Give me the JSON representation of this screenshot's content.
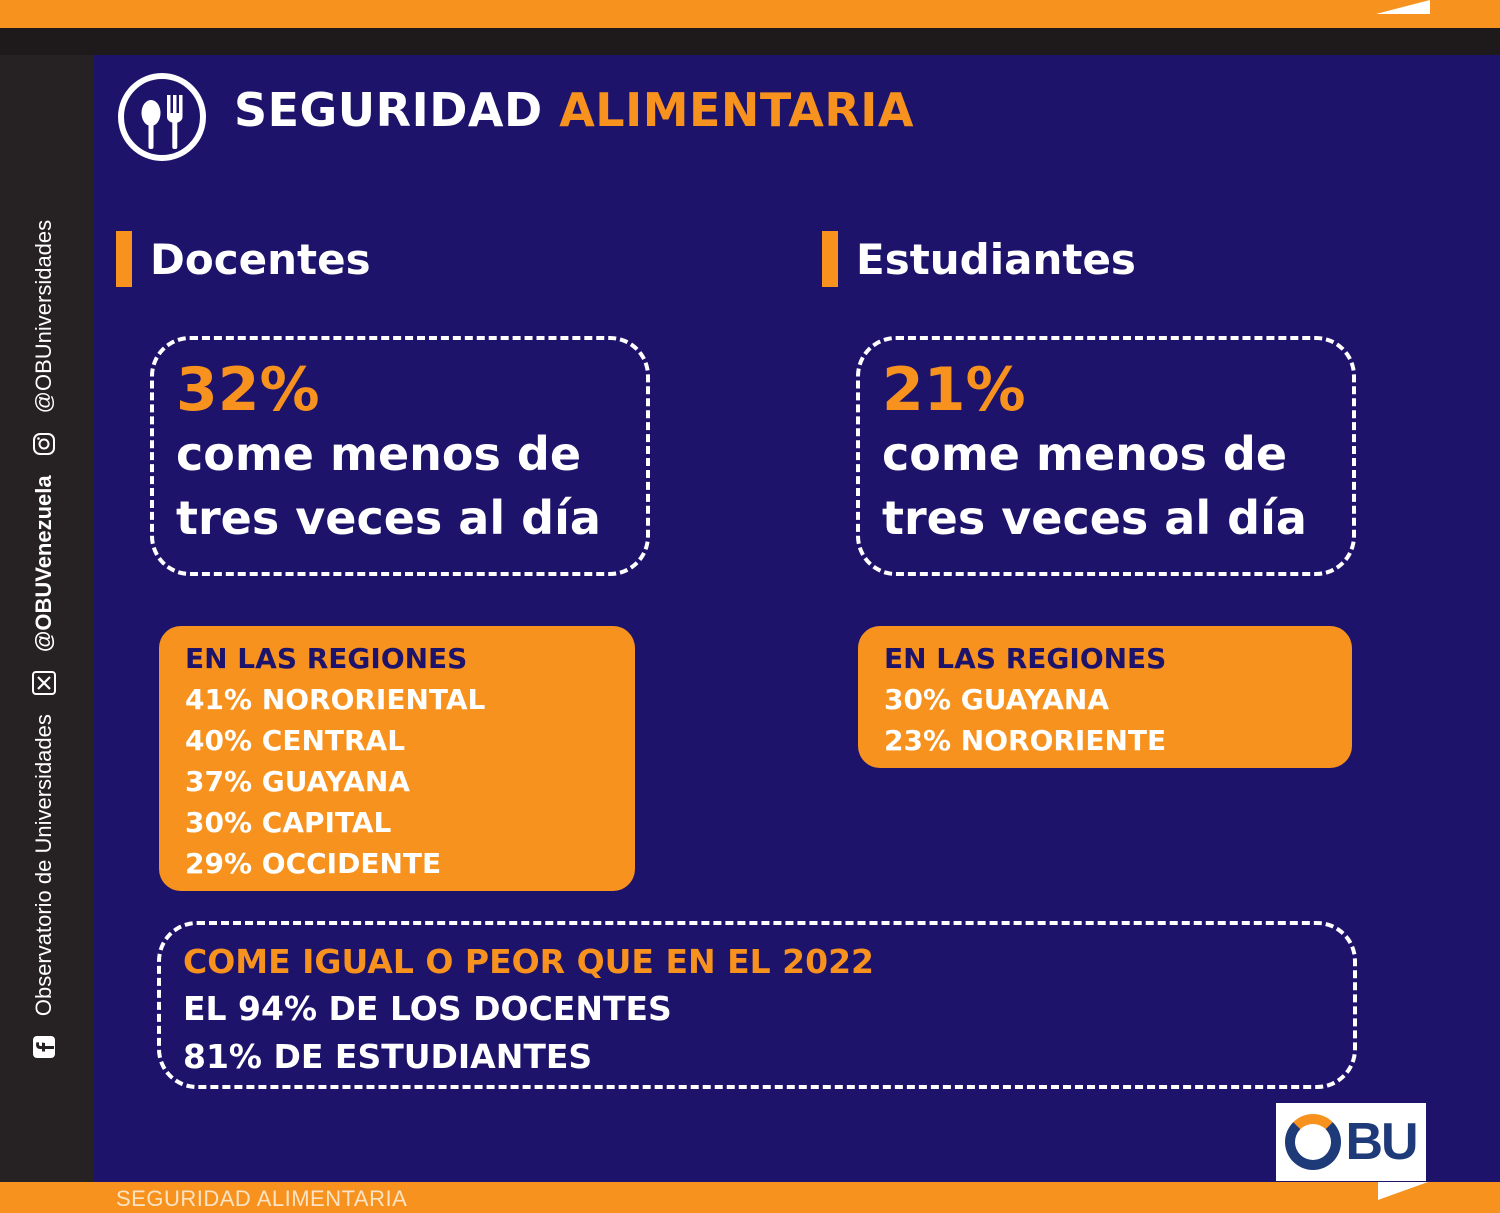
{
  "header": {
    "title_main": "SEGURIDAD",
    "title_accent": "ALIMENTARIA",
    "icon": "fork-spoon-icon"
  },
  "sidebar": {
    "facebook_text": "Observatorio de Universidades",
    "x_handle": "@OBUVenezuela",
    "instagram_handle": "@OBUniversidades",
    "icons": [
      "facebook-icon",
      "x-icon",
      "instagram-icon"
    ]
  },
  "docentes": {
    "heading": "Docentes",
    "percent": "32%",
    "line1": "come menos de",
    "line2": "tres veces al día",
    "regions_title": "EN LAS REGIONES",
    "regions": [
      "41% NORORIENTAL",
      "40% CENTRAL",
      "37% GUAYANA",
      "30% CAPITAL",
      "29% OCCIDENTE"
    ]
  },
  "estudiantes": {
    "heading": "Estudiantes",
    "percent": "21%",
    "line1": "come menos de",
    "line2": "tres veces al día",
    "regions_title": "EN LAS REGIONES",
    "regions": [
      "30% GUAYANA",
      "23% NORORIENTE"
    ]
  },
  "comparison": {
    "title": "COME IGUAL O PEOR QUE EN EL 2022",
    "line1": "EL 94% DE LOS DOCENTES",
    "line2": "81% DE ESTUDIANTES"
  },
  "logo": {
    "text": "BU"
  },
  "footer": {
    "text": "SEGURIDAD ALIMENTARIA"
  },
  "colors": {
    "panel_bg": "#1e136b",
    "accent_orange": "#f7921e",
    "text_white": "#ffffff",
    "dark_strip": "#262223"
  }
}
